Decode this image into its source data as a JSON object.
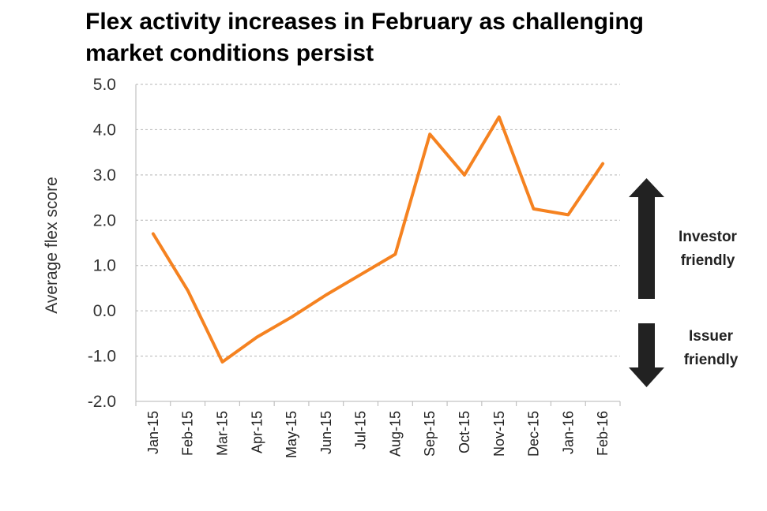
{
  "chart_data": {
    "type": "line",
    "title": [
      "Flex activity increases in February as challenging",
      "market conditions persist"
    ],
    "ylabel": "Average flex score",
    "xlabel": "",
    "ylim": [
      -2.0,
      5.0
    ],
    "yticks": [
      "5.0",
      "4.0",
      "3.0",
      "2.0",
      "1.0",
      "0.0",
      "-1.0",
      "-2.0"
    ],
    "categories": [
      "Jan-15",
      "Feb-15",
      "Mar-15",
      "Apr-15",
      "May-15",
      "Jun-15",
      "Jul-15",
      "Aug-15",
      "Sep-15",
      "Oct-15",
      "Nov-15",
      "Dec-15",
      "Jan-16",
      "Feb-16"
    ],
    "series": [
      {
        "values": [
          1.7,
          0.45,
          -1.13,
          -0.58,
          -0.14,
          0.35,
          0.8,
          1.25,
          3.9,
          3.0,
          4.28,
          2.25,
          2.12,
          3.25
        ]
      }
    ],
    "color": "#F58220",
    "grid": true,
    "annotations": {
      "up_label": [
        "Investor",
        "friendly"
      ],
      "down_label": [
        "Issuer",
        "friendly"
      ]
    }
  }
}
